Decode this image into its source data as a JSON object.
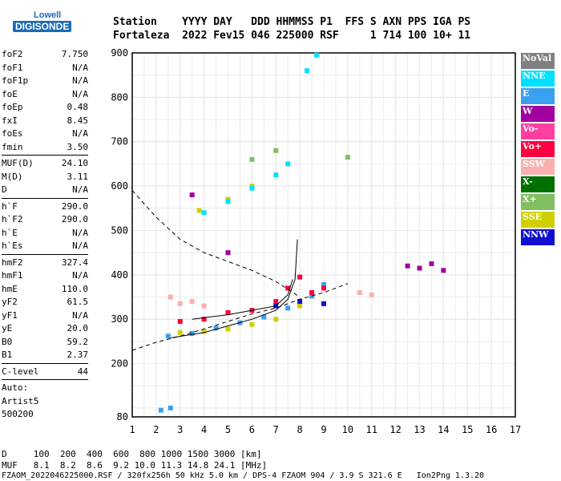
{
  "logo": {
    "line1": "Lowell",
    "line2": "DIGISONDE"
  },
  "header": {
    "row1": "Station    YYYY DAY   DDD HHMMSS P1  FFS S AXN PPS IGA PS",
    "row2": "Fortaleza  2022 Fev15 046 225000 RSF     1 714 100 10+ 11"
  },
  "params": [
    {
      "name": "foF2",
      "value": "7.750"
    },
    {
      "name": "foF1",
      "value": "N/A"
    },
    {
      "name": "foF1p",
      "value": "N/A"
    },
    {
      "name": "foE",
      "value": "N/A"
    },
    {
      "name": "foEp",
      "value": "0.48"
    },
    {
      "name": "fxI",
      "value": "8.45"
    },
    {
      "name": "foEs",
      "value": "N/A"
    },
    {
      "name": "fmin",
      "value": "3.50"
    },
    {
      "sep": true
    },
    {
      "name": "MUF(D)",
      "value": "24.10"
    },
    {
      "name": "M(D)",
      "value": "3.11"
    },
    {
      "name": "D",
      "value": "N/A"
    },
    {
      "sep": true
    },
    {
      "name": "h`F",
      "value": "290.0"
    },
    {
      "name": "h`F2",
      "value": "290.0"
    },
    {
      "name": "h`E",
      "value": "N/A"
    },
    {
      "name": "h`Es",
      "value": "N/A"
    },
    {
      "sep": true
    },
    {
      "name": "hmF2",
      "value": "327.4"
    },
    {
      "name": "hmF1",
      "value": "N/A"
    },
    {
      "name": "hmE",
      "value": "110.0"
    },
    {
      "name": "yF2",
      "value": "61.5"
    },
    {
      "name": "yF1",
      "value": "N/A"
    },
    {
      "name": "yE",
      "value": "20.0"
    },
    {
      "name": "B0",
      "value": "59.2"
    },
    {
      "name": "B1",
      "value": "2.37"
    },
    {
      "sep": true
    },
    {
      "name": "C-level",
      "value": "44"
    },
    {
      "sep": true
    },
    {
      "name": "Auto:",
      "value": ""
    },
    {
      "name": "Artist5",
      "value": ""
    },
    {
      "name": "500200",
      "value": ""
    }
  ],
  "legend": [
    {
      "label": "NoVal",
      "color": "#808080"
    },
    {
      "label": "NNE",
      "color": "#00e0ff"
    },
    {
      "label": "E",
      "color": "#3aa0f0"
    },
    {
      "label": "W",
      "color": "#a000a0"
    },
    {
      "label": "Vo-",
      "color": "#ff40a0"
    },
    {
      "label": "Vo+",
      "color": "#ff0040"
    },
    {
      "label": "SSW",
      "color": "#f8b0b0"
    },
    {
      "label": "X-",
      "color": "#007000"
    },
    {
      "label": "X+",
      "color": "#80c060"
    },
    {
      "label": "SSE",
      "color": "#d0d000"
    },
    {
      "label": "NNW",
      "color": "#1010d0"
    }
  ],
  "footer": {
    "d_row": "D     100  200  400  600  800 1000 1500 3000 [km]",
    "muf_row": "MUF   8.1  8.2  8.6  9.2 10.0 11.3 14.8 24.1 [MHz]",
    "file_row": "FZAOM_2022046225000.RSF / 320fx256h 50 kHz 5.0 km / DPS-4 FZAOM 904 / 3.9 S 321.6 E   Ion2Png 1.3.20"
  },
  "chart_data": {
    "type": "scatter",
    "xlabel": "",
    "ylabel": "",
    "xlim": [
      1,
      17
    ],
    "ylim": [
      80,
      900
    ],
    "x_ticks": [
      1,
      2,
      3,
      4,
      5,
      6,
      7,
      8,
      9,
      10,
      11,
      12,
      13,
      14,
      15,
      16,
      17
    ],
    "y_ticks": [
      80,
      200,
      300,
      400,
      500,
      600,
      700,
      800,
      900
    ],
    "grid": true,
    "series": [
      {
        "name": "E",
        "points": [
          [
            2.5,
            262
          ],
          [
            3.5,
            268
          ],
          [
            4.5,
            280
          ],
          [
            5.5,
            292
          ],
          [
            6.5,
            305
          ],
          [
            7.5,
            325
          ],
          [
            8.5,
            352
          ],
          [
            9,
            378
          ],
          [
            2.2,
            95
          ],
          [
            2.6,
            100
          ]
        ]
      },
      {
        "name": "Vo+",
        "points": [
          [
            3,
            295
          ],
          [
            4,
            300
          ],
          [
            5,
            315
          ],
          [
            6,
            320
          ],
          [
            7,
            340
          ],
          [
            7.5,
            370
          ],
          [
            8,
            395
          ],
          [
            8.5,
            360
          ],
          [
            9,
            370
          ]
        ]
      },
      {
        "name": "SSW",
        "points": [
          [
            2.6,
            350
          ],
          [
            3,
            335
          ],
          [
            3.5,
            340
          ],
          [
            4,
            330
          ],
          [
            10.5,
            360
          ],
          [
            11,
            355
          ]
        ]
      },
      {
        "name": "SSE",
        "points": [
          [
            3,
            270
          ],
          [
            4,
            272
          ],
          [
            5,
            278
          ],
          [
            6,
            288
          ],
          [
            7,
            300
          ],
          [
            8,
            330
          ],
          [
            3.8,
            545
          ],
          [
            5,
            570
          ],
          [
            6,
            600
          ]
        ]
      },
      {
        "name": "NNE",
        "points": [
          [
            4,
            540
          ],
          [
            5,
            565
          ],
          [
            6,
            595
          ],
          [
            7,
            625
          ],
          [
            7.5,
            650
          ],
          [
            8.3,
            860
          ],
          [
            8.7,
            895
          ]
        ]
      },
      {
        "name": "W",
        "points": [
          [
            12.5,
            420
          ],
          [
            13,
            415
          ],
          [
            13.5,
            425
          ],
          [
            14,
            410
          ],
          [
            3.5,
            580
          ],
          [
            5,
            450
          ]
        ]
      },
      {
        "name": "NNW",
        "points": [
          [
            7,
            330
          ],
          [
            8,
            340
          ],
          [
            9,
            335
          ]
        ]
      },
      {
        "name": "X+",
        "points": [
          [
            6,
            660
          ],
          [
            7,
            680
          ],
          [
            10,
            665
          ]
        ]
      }
    ],
    "traces": [
      {
        "style": "solid",
        "points": [
          [
            2.6,
            258
          ],
          [
            4,
            270
          ],
          [
            5,
            285
          ],
          [
            6,
            300
          ],
          [
            7,
            320
          ],
          [
            7.5,
            345
          ],
          [
            7.8,
            390
          ],
          [
            7.9,
            480
          ]
        ]
      },
      {
        "style": "solid",
        "points": [
          [
            3.5,
            300
          ],
          [
            5,
            310
          ],
          [
            6,
            320
          ],
          [
            7,
            330
          ],
          [
            7.5,
            355
          ],
          [
            7.7,
            390
          ]
        ]
      },
      {
        "style": "dashed",
        "points": [
          [
            1,
            590
          ],
          [
            2,
            530
          ],
          [
            3,
            480
          ],
          [
            4,
            450
          ],
          [
            5,
            430
          ],
          [
            6,
            410
          ],
          [
            7,
            385
          ],
          [
            8,
            350
          ]
        ]
      },
      {
        "style": "dashed",
        "points": [
          [
            1,
            230
          ],
          [
            2,
            248
          ],
          [
            3,
            262
          ],
          [
            4,
            278
          ],
          [
            5,
            295
          ],
          [
            6,
            312
          ],
          [
            7,
            325
          ],
          [
            8,
            345
          ],
          [
            9,
            360
          ],
          [
            10,
            380
          ]
        ]
      }
    ]
  }
}
